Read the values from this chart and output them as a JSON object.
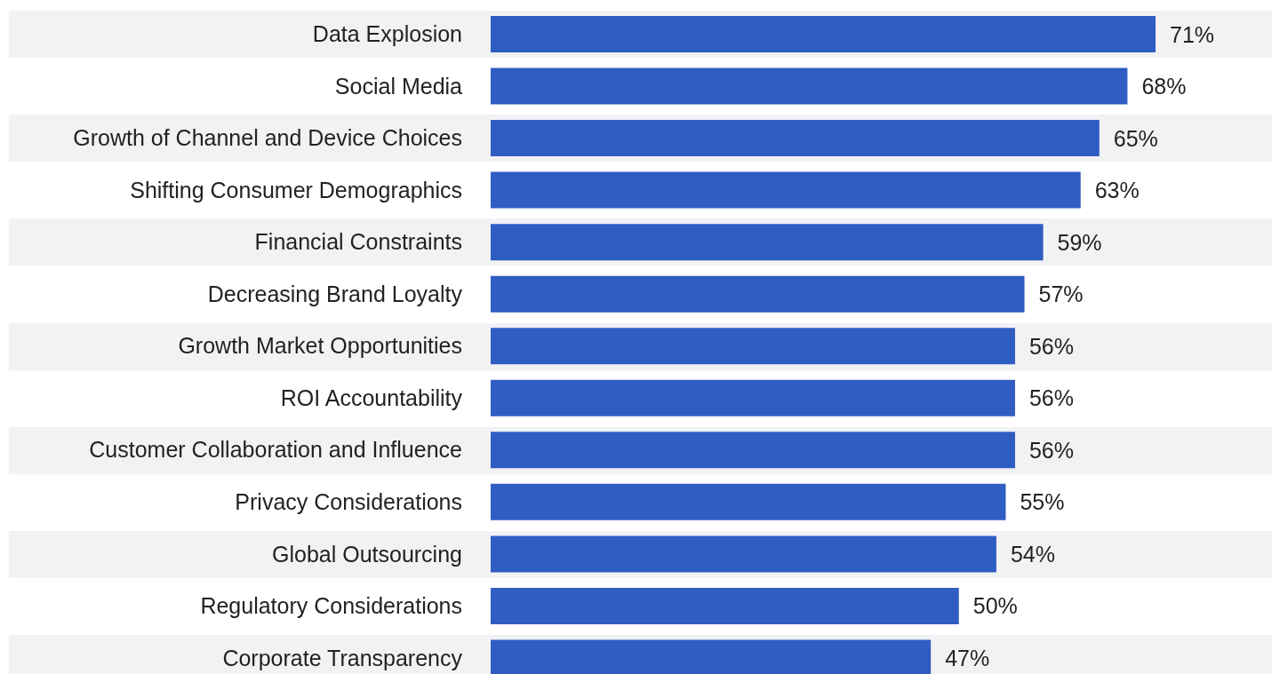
{
  "chart_data": {
    "type": "bar",
    "orientation": "horizontal",
    "categories": [
      "Data Explosion",
      "Social Media",
      "Growth of Channel and Device Choices",
      "Shifting Consumer Demographics",
      "Financial Constraints",
      "Decreasing Brand Loyalty",
      "Growth Market Opportunities",
      "ROI Accountability",
      "Customer Collaboration and Influence",
      "Privacy Considerations",
      "Global Outsourcing",
      "Regulatory Considerations",
      "Corporate Transparency"
    ],
    "values": [
      71,
      68,
      65,
      63,
      59,
      57,
      56,
      56,
      56,
      55,
      54,
      50,
      47
    ],
    "value_labels": [
      "71%",
      "68%",
      "65%",
      "63%",
      "59%",
      "57%",
      "56%",
      "56%",
      "56%",
      "55%",
      "54%",
      "50%",
      "47%"
    ],
    "color": "#2f5dc2"
  }
}
